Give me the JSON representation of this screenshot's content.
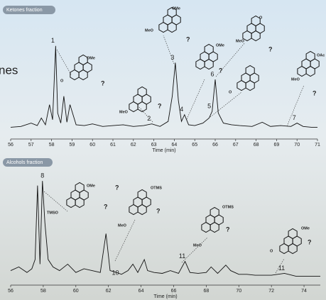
{
  "fragment": "nes",
  "structure_labels": [
    "OMe",
    "?",
    "O",
    "OMe",
    "MeO",
    "?",
    "OMe",
    "?",
    "O",
    "MeO",
    "?",
    "MeO",
    "?",
    "O",
    "?",
    "OAc",
    "MeO",
    "?",
    "OMe",
    "TMSO",
    "?",
    "OTMS",
    "MeO",
    "?",
    "OTMS",
    "MeO",
    "?",
    "OMe",
    "O",
    "?"
  ],
  "chart_data": [
    {
      "type": "line",
      "title": "Ketones fraction",
      "x_label": "Time (min)",
      "color": "#111",
      "x": [
        56,
        56.5,
        57,
        57.3,
        57.5,
        57.7,
        57.9,
        58.05,
        58.2,
        58.3,
        58.45,
        58.6,
        58.75,
        58.9,
        59.2,
        59.6,
        60,
        60.5,
        61,
        61.5,
        62,
        62.5,
        62.9,
        63.3,
        63.7,
        63.9,
        64.05,
        64.2,
        64.35,
        64.5,
        64.7,
        65,
        65.4,
        65.7,
        65.85,
        66.0,
        66.15,
        66.4,
        66.8,
        67.2,
        67.8,
        68.3,
        68.7,
        69.2,
        69.7,
        70.0,
        70.3,
        70.7,
        71
      ],
      "values": [
        3,
        4,
        8,
        5,
        14,
        6,
        30,
        12,
        100,
        20,
        8,
        40,
        9,
        30,
        6,
        5,
        7,
        4,
        5,
        6,
        4,
        5,
        7,
        4,
        10,
        40,
        80,
        35,
        10,
        18,
        6,
        5,
        8,
        14,
        22,
        60,
        20,
        8,
        6,
        5,
        4,
        9,
        4,
        5,
        4,
        8,
        4,
        3,
        3
      ],
      "peaks": [
        {
          "label": "1",
          "x": 58.2
        },
        {
          "label": "2",
          "x": 62.9
        },
        {
          "label": "3",
          "x": 64.05
        },
        {
          "label": "4",
          "x": 64.5
        },
        {
          "label": "5",
          "x": 65.85
        },
        {
          "label": "6",
          "x": 66.0
        },
        {
          "label": "7",
          "x": 70.0
        }
      ],
      "xlim": [
        56,
        71
      ],
      "xticks": [
        56,
        57,
        58,
        59,
        60,
        61,
        62,
        63,
        64,
        65,
        66,
        67,
        68,
        69,
        70,
        71
      ],
      "ylim": [
        0,
        110
      ]
    },
    {
      "type": "line",
      "title": "Alcohols fraction",
      "x_label": "Time (min)",
      "color": "#111",
      "x": [
        56,
        56.5,
        57,
        57.3,
        57.5,
        57.65,
        57.8,
        57.95,
        58.1,
        58.3,
        58.6,
        59,
        59.5,
        60,
        60.5,
        61,
        61.5,
        61.85,
        62.1,
        62.5,
        62.8,
        63.2,
        63.5,
        63.8,
        64.2,
        64.4,
        64.8,
        65.3,
        65.8,
        66.3,
        66.7,
        67,
        67.5,
        68,
        68.3,
        68.7,
        69.2,
        69.5,
        70,
        70.5,
        71,
        72,
        72.8,
        73.5,
        74,
        75
      ],
      "values": [
        8,
        12,
        6,
        10,
        20,
        100,
        15,
        105,
        60,
        20,
        12,
        8,
        15,
        6,
        10,
        8,
        6,
        48,
        8,
        6,
        4,
        8,
        15,
        6,
        20,
        8,
        6,
        5,
        8,
        5,
        18,
        6,
        5,
        6,
        12,
        5,
        14,
        8,
        4,
        4,
        3,
        3,
        5,
        2,
        2,
        2
      ],
      "peaks": [
        {
          "label": "8",
          "x": 57.95
        },
        {
          "label": "10",
          "x": 62.6
        },
        {
          "label": "11",
          "x": 66.7
        },
        {
          "label": "11",
          "x": 72.8
        }
      ],
      "xlim": [
        56,
        75
      ],
      "xticks": [
        56,
        58,
        60,
        62,
        64,
        66,
        68,
        70,
        72,
        74
      ],
      "ylim": [
        0,
        112
      ]
    }
  ]
}
